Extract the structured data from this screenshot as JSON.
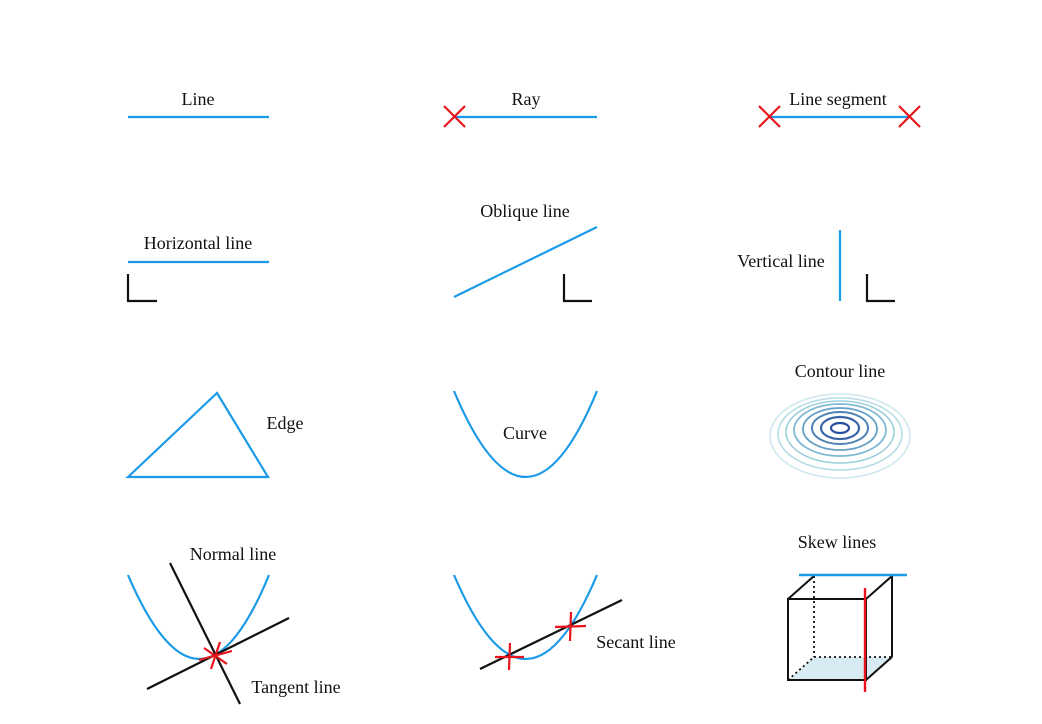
{
  "colors": {
    "line": "#1b9ae8",
    "marker": "#e8141c",
    "black": "#111111",
    "contour_dark": "#2b4f9e",
    "contour_light": "#bfe3ec",
    "cube_face": "#d8eaf2"
  },
  "labels": {
    "line": "Line",
    "ray": "Ray",
    "segment": "Line segment",
    "horizontal": "Horizontal line",
    "oblique": "Oblique line",
    "vertical": "Vertical line",
    "edge": "Edge",
    "curve": "Curve",
    "contour": "Contour line",
    "normal": "Normal line",
    "tangent": "Tangent line",
    "secant": "Secant line",
    "skew": "Skew lines"
  }
}
